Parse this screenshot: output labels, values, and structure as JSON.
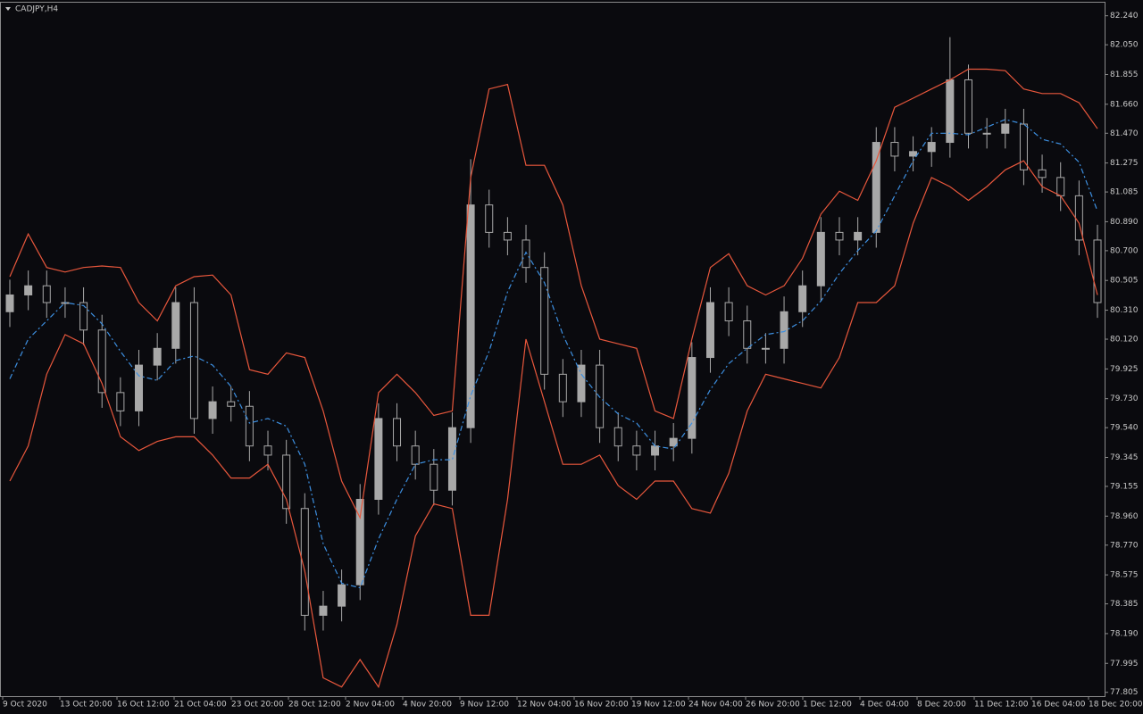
{
  "chart_data": {
    "type": "candlestick",
    "title": "CADJPY,H4",
    "open": [
      80.3,
      80.41,
      80.47,
      80.36,
      80.36,
      80.18,
      79.77,
      79.65,
      79.95,
      80.06,
      80.36,
      79.6,
      79.71,
      79.68,
      79.42,
      79.36,
      79.01,
      78.31,
      78.37,
      78.51,
      79.07,
      79.6,
      79.42,
      79.3,
      79.13,
      79.54,
      81.0,
      80.82,
      80.77,
      80.59,
      79.89,
      79.71,
      79.95,
      79.54,
      79.42,
      79.36,
      79.42,
      79.47,
      80.0,
      80.36,
      80.24,
      80.06,
      80.06,
      80.3,
      80.47,
      80.82,
      80.77,
      80.82,
      81.41,
      81.32,
      81.35,
      81.41,
      81.82,
      81.47,
      81.47,
      81.53,
      81.23,
      81.18,
      81.06,
      80.77
    ],
    "high": [
      80.51,
      80.57,
      80.57,
      80.46,
      80.46,
      80.28,
      79.87,
      80.05,
      80.16,
      80.46,
      80.46,
      79.81,
      79.81,
      79.78,
      79.52,
      79.46,
      79.11,
      78.47,
      78.61,
      79.17,
      79.7,
      79.7,
      79.52,
      79.4,
      79.64,
      81.3,
      81.1,
      80.92,
      80.87,
      80.69,
      79.99,
      80.05,
      80.05,
      79.64,
      79.52,
      79.52,
      79.57,
      80.1,
      80.46,
      80.46,
      80.34,
      80.16,
      80.4,
      80.57,
      80.92,
      80.92,
      80.92,
      81.51,
      81.51,
      81.45,
      81.51,
      82.1,
      81.92,
      81.57,
      81.63,
      81.63,
      81.33,
      81.28,
      81.16,
      80.87
    ],
    "low": [
      80.2,
      80.31,
      80.26,
      80.26,
      80.08,
      79.67,
      79.55,
      79.55,
      79.85,
      79.96,
      79.5,
      79.5,
      79.58,
      79.32,
      79.26,
      78.91,
      78.21,
      78.21,
      78.27,
      78.41,
      78.97,
      79.32,
      79.2,
      79.03,
      79.03,
      79.44,
      80.72,
      80.67,
      80.49,
      79.79,
      79.61,
      79.61,
      79.44,
      79.32,
      79.26,
      79.26,
      79.32,
      79.37,
      79.9,
      80.14,
      79.96,
      79.96,
      79.96,
      80.2,
      80.37,
      80.67,
      80.67,
      80.72,
      81.22,
      81.22,
      81.25,
      81.31,
      81.37,
      81.37,
      81.37,
      81.13,
      81.08,
      80.96,
      80.67,
      80.26
    ],
    "close": [
      80.41,
      80.47,
      80.36,
      80.36,
      80.18,
      79.77,
      79.65,
      79.95,
      80.06,
      80.36,
      79.6,
      79.71,
      79.68,
      79.42,
      79.36,
      79.01,
      78.31,
      78.37,
      78.51,
      79.07,
      79.6,
      79.42,
      79.3,
      79.13,
      79.54,
      81.0,
      80.82,
      80.77,
      80.59,
      79.89,
      79.71,
      79.95,
      79.54,
      79.42,
      79.36,
      79.42,
      79.47,
      80.0,
      80.36,
      80.24,
      80.06,
      80.06,
      80.3,
      80.47,
      80.82,
      80.77,
      80.82,
      81.41,
      81.32,
      81.35,
      81.41,
      81.82,
      81.47,
      81.47,
      81.53,
      81.23,
      81.18,
      81.06,
      80.77,
      80.36
    ],
    "candle_color": "#a8a8a8",
    "series": [
      {
        "color": "#e8573c",
        "values": [
          80.53,
          80.81,
          80.59,
          80.56,
          80.59,
          80.6,
          80.59,
          80.36,
          80.24,
          80.47,
          80.53,
          80.54,
          80.41,
          79.92,
          79.89,
          80.03,
          80.0,
          79.65,
          79.19,
          78.95,
          79.77,
          79.89,
          79.77,
          79.62,
          79.65,
          81.18,
          81.76,
          81.79,
          81.26,
          81.26,
          81.0,
          80.47,
          80.12,
          80.09,
          80.06,
          79.65,
          79.6,
          80.12,
          80.59,
          80.68,
          80.47,
          80.41,
          80.47,
          80.65,
          80.94,
          81.09,
          81.03,
          81.29,
          81.64,
          81.7,
          81.76,
          81.82,
          81.89,
          81.89,
          81.88,
          81.76,
          81.73,
          81.73,
          81.67,
          81.5
        ]
      },
      {
        "color": "#3d8fe0",
        "dashed": true,
        "values": [
          79.86,
          80.12,
          80.24,
          80.36,
          80.34,
          80.22,
          80.04,
          79.88,
          79.85,
          79.98,
          80.01,
          79.95,
          79.81,
          79.57,
          79.6,
          79.55,
          79.3,
          78.78,
          78.52,
          78.49,
          78.81,
          79.07,
          79.3,
          79.33,
          79.33,
          79.75,
          80.04,
          80.43,
          80.69,
          80.49,
          80.15,
          79.89,
          79.74,
          79.63,
          79.57,
          79.42,
          79.4,
          79.57,
          79.79,
          79.96,
          80.06,
          80.15,
          80.17,
          80.24,
          80.37,
          80.55,
          80.7,
          80.83,
          81.06,
          81.29,
          81.47,
          81.47,
          81.46,
          81.51,
          81.56,
          81.53,
          81.43,
          81.4,
          81.28,
          80.96
        ]
      },
      {
        "color": "#e8573c",
        "values": [
          79.19,
          79.42,
          79.89,
          80.15,
          80.09,
          79.83,
          79.48,
          79.39,
          79.45,
          79.48,
          79.48,
          79.36,
          79.21,
          79.21,
          79.3,
          79.07,
          78.6,
          77.9,
          77.84,
          78.02,
          77.84,
          78.25,
          78.83,
          79.04,
          79.01,
          78.31,
          78.31,
          79.07,
          80.12,
          79.71,
          79.3,
          79.3,
          79.36,
          79.16,
          79.07,
          79.19,
          79.19,
          79.01,
          78.98,
          79.24,
          79.65,
          79.89,
          79.86,
          79.83,
          79.8,
          80.0,
          80.36,
          80.36,
          80.47,
          80.88,
          81.18,
          81.12,
          81.03,
          81.12,
          81.23,
          81.29,
          81.12,
          81.06,
          80.88,
          80.41
        ]
      }
    ],
    "ylim": [
      77.78,
      82.32
    ],
    "yticks": [
      {
        "value": 82.24,
        "label": "82.240"
      },
      {
        "value": 82.05,
        "label": "82.050"
      },
      81.855,
      {
        "value": 81.66,
        "label": "81.660"
      },
      {
        "value": 81.47,
        "label": "81.470"
      },
      81.275,
      81.085,
      {
        "value": 80.89,
        "label": "80.890"
      },
      {
        "value": 80.7,
        "label": "80.700"
      },
      80.505,
      {
        "value": 80.31,
        "label": "80.310"
      },
      {
        "value": 80.12,
        "label": "80.120"
      },
      79.925,
      {
        "value": 79.73,
        "label": "79.730"
      },
      {
        "value": 79.54,
        "label": "79.540"
      },
      79.345,
      79.155,
      {
        "value": 78.96,
        "label": "78.960"
      },
      {
        "value": 78.77,
        "label": "78.770"
      },
      78.575,
      78.385,
      {
        "value": 78.19,
        "label": "78.190"
      },
      77.995,
      77.805
    ],
    "xticks": [
      "9 Oct 2020",
      "13 Oct 20:00",
      "16 Oct 12:00",
      "21 Oct 04:00",
      "23 Oct 20:00",
      "28 Oct 12:00",
      "2 Nov 04:00",
      "4 Nov 20:00",
      "9 Nov 12:00",
      "12 Nov 04:00",
      "16 Nov 20:00",
      "19 Nov 12:00",
      "24 Nov 04:00",
      "26 Nov 20:00",
      "1 Dec 12:00",
      "4 Dec 04:00",
      "8 Dec 20:00",
      "11 Dec 12:00",
      "16 Dec 04:00",
      "18 Dec 20:00"
    ]
  }
}
